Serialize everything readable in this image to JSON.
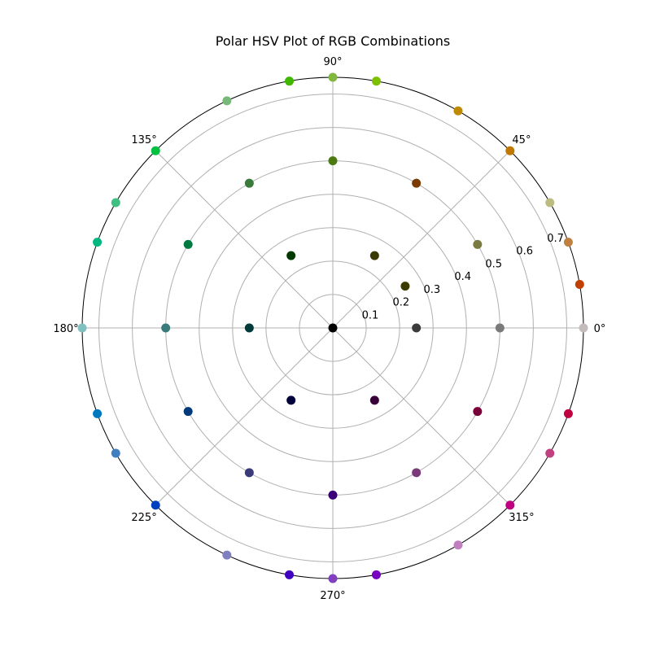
{
  "chart_data": {
    "type": "scatter",
    "projection": "polar",
    "title": "Polar HSV Plot of RGB Combinations",
    "angle_unit": "degrees",
    "angle_ticks": [
      "0°",
      "45°",
      "90°",
      "135°",
      "180°",
      "225°",
      "270°",
      "315°"
    ],
    "angle_tick_values": [
      0,
      45,
      90,
      135,
      180,
      225,
      270,
      315
    ],
    "radial_ticks": [
      "0.1",
      "0.2",
      "0.3",
      "0.4",
      "0.5",
      "0.6",
      "0.7"
    ],
    "radial_tick_values": [
      0.1,
      0.2,
      0.3,
      0.4,
      0.5,
      0.6,
      0.7
    ],
    "rlim": [
      0,
      0.75
    ],
    "grid": true,
    "points": [
      {
        "theta": 0,
        "r": 0.0,
        "color": "#000000"
      },
      {
        "theta": 0,
        "r": 0.25,
        "color": "#3a3a3a"
      },
      {
        "theta": 0,
        "r": 0.5,
        "color": "#7a7a7a"
      },
      {
        "theta": 0,
        "r": 0.75,
        "color": "#c4bcbc"
      },
      {
        "theta": 30,
        "r": 0.25,
        "color": "#3b3b00"
      },
      {
        "theta": 30,
        "r": 0.5,
        "color": "#7a7a40"
      },
      {
        "theta": 30,
        "r": 0.75,
        "color": "#bcbc80"
      },
      {
        "theta": 60,
        "r": 0.5,
        "color": "#7a3a00"
      },
      {
        "theta": 60,
        "r": 0.75,
        "color": "#bf8a00"
      },
      {
        "theta": 90,
        "r": 0.5,
        "color": "#4a7a10"
      },
      {
        "theta": 90,
        "r": 0.75,
        "color": "#80b840"
      },
      {
        "theta": 80,
        "r": 0.75,
        "color": "#7cc000"
      },
      {
        "theta": 100,
        "r": 0.75,
        "color": "#40b800"
      },
      {
        "theta": 115,
        "r": 0.75,
        "color": "#78b878"
      },
      {
        "theta": 120,
        "r": 0.25,
        "color": "#003a00"
      },
      {
        "theta": 120,
        "r": 0.5,
        "color": "#3a7a3a"
      },
      {
        "theta": 135,
        "r": 0.75,
        "color": "#00c040"
      },
      {
        "theta": 150,
        "r": 0.5,
        "color": "#007a40"
      },
      {
        "theta": 150,
        "r": 0.75,
        "color": "#40c080"
      },
      {
        "theta": 160,
        "r": 0.75,
        "color": "#00b880"
      },
      {
        "theta": 180,
        "r": 0.25,
        "color": "#003a3a"
      },
      {
        "theta": 180,
        "r": 0.5,
        "color": "#3a7a7a"
      },
      {
        "theta": 180,
        "r": 0.75,
        "color": "#80c0c0"
      },
      {
        "theta": 200,
        "r": 0.75,
        "color": "#0078c0"
      },
      {
        "theta": 210,
        "r": 0.5,
        "color": "#003a7a"
      },
      {
        "theta": 210,
        "r": 0.75,
        "color": "#4080c0"
      },
      {
        "theta": 225,
        "r": 0.75,
        "color": "#0040c0"
      },
      {
        "theta": 240,
        "r": 0.25,
        "color": "#00003a"
      },
      {
        "theta": 240,
        "r": 0.5,
        "color": "#3a3a7a"
      },
      {
        "theta": 245,
        "r": 0.75,
        "color": "#8080c0"
      },
      {
        "theta": 260,
        "r": 0.75,
        "color": "#4000c0"
      },
      {
        "theta": 270,
        "r": 0.5,
        "color": "#3a007a"
      },
      {
        "theta": 270,
        "r": 0.75,
        "color": "#8040c0"
      },
      {
        "theta": 280,
        "r": 0.75,
        "color": "#7800c0"
      },
      {
        "theta": 300,
        "r": 0.25,
        "color": "#3a003a"
      },
      {
        "theta": 300,
        "r": 0.5,
        "color": "#7a3a7a"
      },
      {
        "theta": 300,
        "r": 0.75,
        "color": "#c080c0"
      },
      {
        "theta": 315,
        "r": 0.75,
        "color": "#c00080"
      },
      {
        "theta": 330,
        "r": 0.5,
        "color": "#7a003a"
      },
      {
        "theta": 330,
        "r": 0.75,
        "color": "#c04080"
      },
      {
        "theta": 340,
        "r": 0.75,
        "color": "#c00040"
      },
      {
        "theta": 20,
        "r": 0.75,
        "color": "#c08040"
      },
      {
        "theta": 45,
        "r": 0.75,
        "color": "#c07800"
      },
      {
        "theta": 10,
        "r": 0.75,
        "color": "#c04000"
      },
      {
        "theta": 60,
        "r": 0.25,
        "color": "#3a3a00"
      }
    ]
  },
  "colors": {
    "grid": "#b0b0b0",
    "spine": "#000000",
    "background": "#ffffff"
  }
}
